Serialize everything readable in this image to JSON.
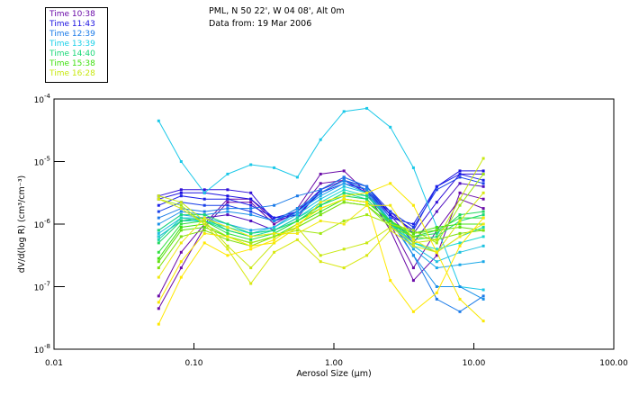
{
  "header": {
    "line1": "PML, N 50 22', W 04 08', Alt 0m",
    "line2": "Data from: 19 Mar 2006"
  },
  "legend": [
    {
      "label": "Time 10:38",
      "color": "#6a0aa8"
    },
    {
      "label": "Time 11:43",
      "color": "#1a10e0"
    },
    {
      "label": "Time 12:39",
      "color": "#1a7ae8"
    },
    {
      "label": "Time 13:39",
      "color": "#1ad0e8"
    },
    {
      "label": "Time 14:40",
      "color": "#1ad878"
    },
    {
      "label": "Time 15:38",
      "color": "#40e010"
    },
    {
      "label": "Time 16:28",
      "color": "#c8e810"
    }
  ],
  "chart_data": {
    "type": "line",
    "title": "",
    "xlabel": "Aerosol Size (µm)",
    "ylabel": "dV/d(log R) (cm³/cm⁻³)",
    "xscale": "log",
    "yscale": "log",
    "xlim": [
      0.01,
      100
    ],
    "ylim": [
      1e-08,
      0.0001
    ],
    "xticks": [
      {
        "value": 0.01,
        "label": "0.01"
      },
      {
        "value": 0.1,
        "label": "0.10"
      },
      {
        "value": 1,
        "label": "1.00"
      },
      {
        "value": 10,
        "label": "10.00"
      },
      {
        "value": 100,
        "label": "100.00"
      }
    ],
    "yticks": [
      {
        "value": 0.0001,
        "base": "10",
        "exp": "-4"
      },
      {
        "value": 1e-05,
        "base": "10",
        "exp": "-5"
      },
      {
        "value": 1e-06,
        "base": "10",
        "exp": "-6"
      },
      {
        "value": 1e-07,
        "base": "10",
        "exp": "-7"
      },
      {
        "value": 1e-08,
        "base": "10",
        "exp": "-8"
      }
    ],
    "x": [
      0.056,
      0.081,
      0.119,
      0.174,
      0.255,
      0.374,
      0.548,
      0.803,
      1.18,
      1.72,
      2.53,
      3.7,
      5.43,
      7.95,
      11.7
    ],
    "series_log10": [
      {
        "color": "#6a0aa8",
        "values": [
          -7.15,
          -6.45,
          -6.0,
          -5.6,
          -5.6,
          -5.95,
          -5.75,
          -5.2,
          -5.15,
          -5.5,
          -6.1,
          -6.9,
          -6.5,
          -5.5,
          -5.6
        ]
      },
      {
        "color": "#6a0aa8",
        "values": [
          -7.35,
          -6.7,
          -6.05,
          -5.65,
          -5.65,
          -6.0,
          -5.8,
          -5.35,
          -5.3,
          -5.45,
          -6.0,
          -6.7,
          -6.1,
          -5.6,
          -5.75
        ]
      },
      {
        "color": "#5010c0",
        "values": [
          -6.2,
          -5.95,
          -5.9,
          -5.85,
          -5.95,
          -6.1,
          -5.9,
          -5.45,
          -5.3,
          -5.45,
          -5.85,
          -6.3,
          -5.8,
          -5.35,
          -5.4
        ]
      },
      {
        "color": "#3010d8",
        "values": [
          -5.55,
          -5.45,
          -5.45,
          -5.45,
          -5.5,
          -5.95,
          -5.85,
          -5.5,
          -5.3,
          -5.5,
          -5.8,
          -6.15,
          -5.65,
          -5.2,
          -5.2
        ]
      },
      {
        "color": "#1a10e0",
        "values": [
          -5.6,
          -5.5,
          -5.5,
          -5.55,
          -5.6,
          -5.9,
          -5.8,
          -5.45,
          -5.25,
          -5.4,
          -5.85,
          -6.1,
          -5.4,
          -5.15,
          -5.15
        ]
      },
      {
        "color": "#1a20e8",
        "values": [
          -5.7,
          -5.55,
          -5.6,
          -5.6,
          -5.7,
          -5.9,
          -5.85,
          -5.5,
          -5.35,
          -5.45,
          -5.9,
          -6.0,
          -5.4,
          -5.2,
          -5.3
        ]
      },
      {
        "color": "#1a40e8",
        "values": [
          -5.8,
          -5.65,
          -5.7,
          -5.7,
          -5.8,
          -5.95,
          -5.8,
          -5.5,
          -5.3,
          -5.4,
          -5.8,
          -6.05,
          -5.45,
          -5.25,
          -5.35
        ]
      },
      {
        "color": "#1ac8e8",
        "values": [
          -4.35,
          -5.0,
          -5.5,
          -5.2,
          -5.05,
          -5.1,
          -5.25,
          -4.65,
          -4.2,
          -4.15,
          -4.45,
          -5.1,
          -6.05,
          -7.0,
          -7.05
        ]
      },
      {
        "color": "#1a7ae8",
        "values": [
          -5.9,
          -5.75,
          -5.8,
          -5.75,
          -5.75,
          -5.7,
          -5.55,
          -5.45,
          -5.25,
          -5.4,
          -5.9,
          -6.5,
          -7.2,
          -7.4,
          -7.15
        ]
      },
      {
        "color": "#1a90e8",
        "values": [
          -6.0,
          -5.8,
          -5.85,
          -5.8,
          -5.85,
          -5.95,
          -5.75,
          -5.5,
          -5.3,
          -5.45,
          -5.95,
          -6.5,
          -7.0,
          -7.0,
          -7.2
        ]
      },
      {
        "color": "#1aa8e8",
        "values": [
          -6.1,
          -5.85,
          -5.9,
          -6.0,
          -6.1,
          -6.05,
          -5.8,
          -5.55,
          -5.35,
          -5.5,
          -5.95,
          -6.4,
          -6.7,
          -6.65,
          -6.6
        ]
      },
      {
        "color": "#1ac0e0",
        "values": [
          -6.15,
          -5.9,
          -5.9,
          -6.05,
          -6.15,
          -6.05,
          -5.85,
          -5.6,
          -5.4,
          -5.5,
          -6.0,
          -6.35,
          -6.6,
          -6.45,
          -6.35
        ]
      },
      {
        "color": "#1ad8d0",
        "values": [
          -6.2,
          -5.95,
          -5.95,
          -6.05,
          -6.15,
          -6.1,
          -5.9,
          -5.65,
          -5.45,
          -5.55,
          -5.95,
          -6.3,
          -6.4,
          -6.3,
          -6.2
        ]
      },
      {
        "color": "#1ad8a8",
        "values": [
          -6.25,
          -5.9,
          -5.95,
          -6.1,
          -6.2,
          -6.1,
          -5.9,
          -5.7,
          -5.5,
          -5.6,
          -6.0,
          -6.3,
          -6.45,
          -6.2,
          -6.05
        ]
      },
      {
        "color": "#1ad878",
        "values": [
          -6.1,
          -5.85,
          -5.85,
          -6.0,
          -6.15,
          -6.1,
          -5.95,
          -5.7,
          -5.5,
          -5.55,
          -5.95,
          -6.25,
          -6.2,
          -5.95,
          -5.85
        ]
      },
      {
        "color": "#20d860",
        "values": [
          -6.3,
          -5.95,
          -5.9,
          -6.1,
          -6.2,
          -6.15,
          -5.95,
          -5.7,
          -5.55,
          -5.6,
          -6.0,
          -6.2,
          -6.15,
          -5.85,
          -5.8
        ]
      },
      {
        "color": "#30e040",
        "values": [
          -6.45,
          -6.0,
          -5.95,
          -6.15,
          -6.25,
          -6.15,
          -5.95,
          -5.75,
          -5.6,
          -5.65,
          -5.95,
          -6.2,
          -6.1,
          -5.9,
          -5.9
        ]
      },
      {
        "color": "#40e010",
        "values": [
          -6.55,
          -6.05,
          -6.0,
          -6.2,
          -6.3,
          -6.2,
          -6.0,
          -5.8,
          -5.6,
          -5.65,
          -5.95,
          -6.15,
          -6.05,
          -6.0,
          -6.0
        ]
      },
      {
        "color": "#60e010",
        "values": [
          -6.6,
          -6.1,
          -6.05,
          -6.2,
          -6.3,
          -6.2,
          -6.05,
          -5.85,
          -5.65,
          -5.7,
          -6.0,
          -6.15,
          -6.1,
          -6.05,
          -6.1
        ]
      },
      {
        "color": "#80e010",
        "values": [
          -6.7,
          -6.2,
          -6.1,
          -6.25,
          -6.35,
          -6.2,
          -6.05,
          -5.85,
          -5.65,
          -5.7,
          -6.05,
          -6.2,
          -6.25,
          -6.15,
          -6.1
        ]
      },
      {
        "color": "#a0e810",
        "values": [
          -5.6,
          -5.7,
          -6.0,
          -6.2,
          -6.3,
          -6.2,
          -6.1,
          -6.15,
          -5.95,
          -5.85,
          -6.0,
          -6.1,
          -6.3,
          -5.7,
          -5.2
        ]
      },
      {
        "color": "#c8e810",
        "values": [
          -5.55,
          -5.65,
          -5.95,
          -6.35,
          -6.7,
          -6.3,
          -6.05,
          -6.5,
          -6.4,
          -6.3,
          -6.05,
          -6.3,
          -6.25,
          -5.6,
          -4.95
        ]
      },
      {
        "color": "#d8e810",
        "values": [
          -5.6,
          -5.75,
          -6.0,
          -6.4,
          -6.95,
          -6.45,
          -6.25,
          -6.6,
          -6.7,
          -6.5,
          -6.1,
          -6.35,
          -6.45,
          -5.95,
          -5.5
        ]
      },
      {
        "color": "#f0e810",
        "values": [
          -6.85,
          -6.3,
          -5.9,
          -6.05,
          -6.2,
          -6.15,
          -6.15,
          -5.95,
          -6.0,
          -5.7,
          -5.7,
          -6.25,
          -6.45,
          -6.2,
          -6.0
        ]
      },
      {
        "color": "#f8e800",
        "values": [
          -7.25,
          -6.6,
          -6.15,
          -6.2,
          -6.35,
          -6.3,
          -6.05,
          -5.65,
          -5.55,
          -5.5,
          -5.35,
          -5.7,
          -6.45,
          -7.2,
          -7.55
        ]
      },
      {
        "color": "#ffe800",
        "values": [
          -7.6,
          -6.85,
          -6.3,
          -6.5,
          -6.4,
          -6.25,
          -6.0,
          -5.75,
          -5.6,
          -5.65,
          -6.9,
          -7.4,
          -7.1,
          -6.35,
          -5.9
        ]
      }
    ]
  },
  "labels": {
    "xlabel": "Aerosol Size (µm)",
    "ylabel": "dV/d(log R) (cm³/cm⁻³)"
  }
}
